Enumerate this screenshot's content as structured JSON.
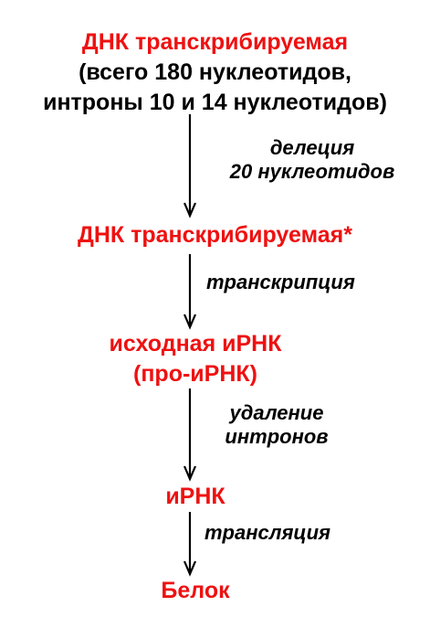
{
  "nodes": {
    "dna_original": {
      "title": "ДНК транскрибируемая",
      "detail_line1": "(всего 180 нуклеотидов,",
      "detail_line2": "интроны 10 и 14 нуклеотидов)"
    },
    "dna_modified": {
      "title": "ДНК транскрибируемая*"
    },
    "pre_mrna": {
      "line1": "исходная иРНК",
      "line2": "(про-иРНК)"
    },
    "mrna": {
      "title": "иРНК"
    },
    "protein": {
      "title": "Белок"
    }
  },
  "steps": {
    "deletion": {
      "line1": "делеция",
      "line2": "20 нуклеотидов"
    },
    "transcription": {
      "label": "транскрипция"
    },
    "splicing": {
      "line1": "удаление",
      "line2": "интронов"
    },
    "translation": {
      "label": "трансляция"
    }
  },
  "colors": {
    "node_highlight": "#ee1111",
    "text": "#000000",
    "arrow": "#000000"
  }
}
